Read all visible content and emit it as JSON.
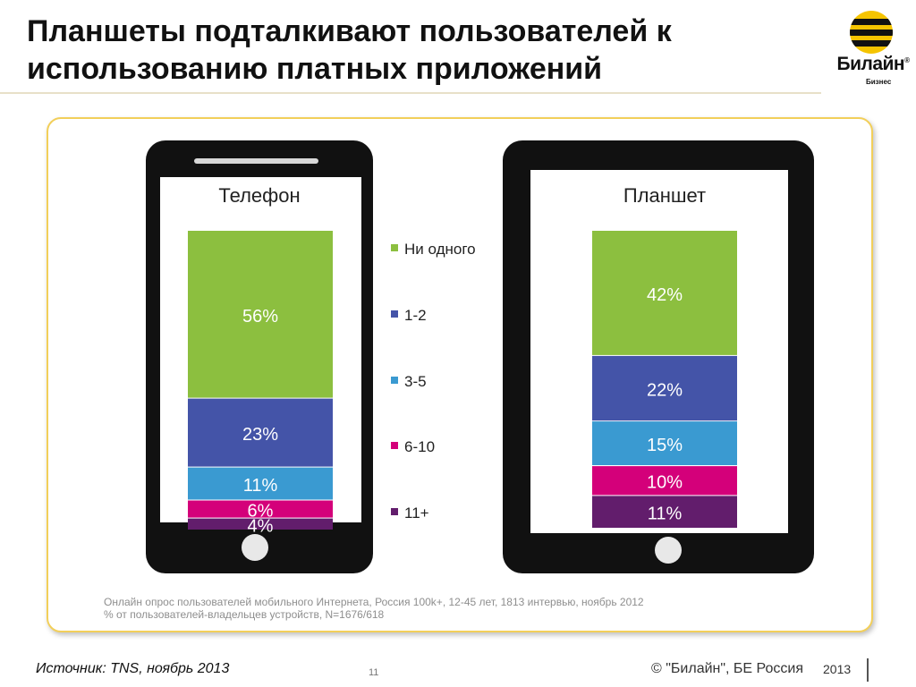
{
  "slide": {
    "title_line1": "Планшеты подталкивают пользователей к",
    "title_line2": "использованию платных приложений",
    "logo_name": "Билайн",
    "logo_reg": "®",
    "logo_sub": "Бизнес",
    "note_line1": "Онлайн опрос пользователей мобильного Интернета, Россия 100k+, 12-45 лет, 1813 интервью, ноябрь 2012",
    "note_line2": "% от пользователей-владельцев устройств, N=1676/618",
    "source": "Источник: TNS, ноябрь 2013",
    "page_number": "11",
    "copyright": "© \"Билайн\", БЕ Россия",
    "year": "2013"
  },
  "colors": {
    "none": "#8cbf3f",
    "one_two": "#4454a8",
    "three_five": "#3a9ad1",
    "six_ten": "#d4007a",
    "eleven_plus": "#621d6c",
    "brand": "#f5c400"
  },
  "chart_data": {
    "type": "bar",
    "stacked": true,
    "unit": "%",
    "categories": [
      "Телефон",
      "Планшет"
    ],
    "series": [
      {
        "name": "Ни одного",
        "values": [
          56,
          42
        ],
        "labels": [
          "56%",
          "42%"
        ]
      },
      {
        "name": "1-2",
        "values": [
          23,
          22
        ],
        "labels": [
          "23%",
          "22%"
        ]
      },
      {
        "name": "3-5",
        "values": [
          11,
          15
        ],
        "labels": [
          "11%",
          "15%"
        ]
      },
      {
        "name": "6-10",
        "values": [
          6,
          10
        ],
        "labels": [
          "6%",
          "10%"
        ]
      },
      {
        "name": "11+",
        "values": [
          4,
          11
        ],
        "labels": [
          "4%",
          "11%"
        ]
      }
    ],
    "legend_position": "center"
  }
}
